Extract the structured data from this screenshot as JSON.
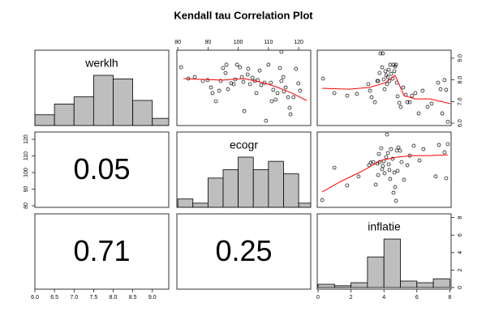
{
  "title": "Kendall tau Correlation Plot",
  "chart_data": [
    {
      "type": "histogram",
      "label": "werklh",
      "color": "#bebebe",
      "bins": [
        6.0,
        6.5,
        7.0,
        7.5,
        8.0,
        8.5,
        9.0,
        9.5
      ],
      "values": [
        3,
        6,
        8,
        14,
        13,
        7,
        2
      ],
      "xlim": [
        6.0,
        9.42
      ],
      "ylim": [
        0,
        21
      ]
    },
    {
      "type": "scatter",
      "xlim": [
        79.7,
        124.0
      ],
      "ylim": [
        5.89,
        9.37
      ],
      "x_axis": "top",
      "xticks": [
        80,
        90,
        100,
        110,
        120
      ],
      "x": [
        81.1,
        83.5,
        85.6,
        88.3,
        89.9,
        91.0,
        91.5,
        92.6,
        93.7,
        94.2,
        95.0,
        96.1,
        95.8,
        96.6,
        97.7,
        98.5,
        99.0,
        99.6,
        100.6,
        101.2,
        101.7,
        102.0,
        103.1,
        103.3,
        103.9,
        104.7,
        105.5,
        106.0,
        106.5,
        107.1,
        107.6,
        108.7,
        109.2,
        110.0,
        110.8,
        111.1,
        111.6,
        112.4,
        113.0,
        113.8,
        114.3,
        114.9,
        115.1,
        115.7,
        116.5,
        117.0,
        117.3,
        118.3,
        119.1,
        119.9,
        114.3,
        120.5
      ],
      "values": [
        8.58,
        8.06,
        8.13,
        7.95,
        7.99,
        7.65,
        7.39,
        7.01,
        7.5,
        7.95,
        8.55,
        8.7,
        8.32,
        7.57,
        7.84,
        7.8,
        8.02,
        8.7,
        8.58,
        8.13,
        7.91,
        6.56,
        8.25,
        8.51,
        7.8,
        8.1,
        7.95,
        7.39,
        7.99,
        8.43,
        7.76,
        7.87,
        6.11,
        8.7,
        7.87,
        7.01,
        7.54,
        7.09,
        7.39,
        8.55,
        7.95,
        8.13,
        7.46,
        7.65,
        7.2,
        6.71,
        6.41,
        7.2,
        8.51,
        7.84,
        9.3,
        7.5
      ],
      "smooth": {
        "color": "#ff0000",
        "x": [
          81.9,
          88.3,
          95.0,
          101.7,
          107.1,
          112.4,
          117.8,
          122.6
        ],
        "values": [
          8.06,
          8.02,
          7.99,
          8.06,
          7.91,
          7.69,
          7.39,
          7.05
        ]
      }
    },
    {
      "type": "scatter",
      "xlim": [
        -0.05,
        8.08
      ],
      "ylim": [
        5.89,
        9.37
      ],
      "y_axis": "right",
      "yticks": [
        {
          "value": 6,
          "label": "6.0"
        },
        {
          "value": 7,
          "label": "7.0"
        },
        {
          "value": 8,
          "label": "8.0"
        },
        {
          "value": 9,
          "label": "9.0"
        }
      ],
      "x": [
        0.3,
        0.99,
        1.77,
        2.36,
        3.05,
        3.15,
        3.25,
        3.45,
        3.6,
        3.65,
        3.74,
        3.79,
        3.89,
        3.94,
        3.99,
        4.04,
        4.09,
        4.14,
        4.19,
        4.24,
        4.29,
        4.33,
        4.38,
        4.43,
        4.53,
        4.58,
        4.63,
        4.68,
        4.73,
        4.78,
        4.83,
        4.93,
        5.02,
        5.17,
        5.32,
        5.42,
        5.57,
        5.71,
        5.91,
        6.11,
        6.35,
        6.65,
        6.9,
        7.29,
        7.44,
        7.54,
        7.78,
        7.88,
        7.68
      ],
      "values": [
        8.06,
        7.39,
        7.27,
        7.35,
        7.8,
        7.5,
        7.2,
        6.97,
        7.95,
        7.95,
        8.32,
        9.22,
        8.58,
        9.22,
        8.02,
        7.57,
        8.4,
        8.21,
        7.8,
        8.13,
        8.47,
        7.95,
        8.7,
        8.28,
        8.06,
        8.7,
        8.4,
        8.62,
        8.7,
        7.87,
        7.24,
        6.94,
        6.75,
        7.65,
        7.31,
        6.97,
        6.97,
        7.27,
        7.39,
        6.45,
        7.5,
        6.75,
        6.9,
        7.87,
        7.57,
        6.45,
        7.54,
        6.07,
        7.99
      ],
      "smooth": {
        "color": "#ff0000",
        "x": [
          0.25,
          1.87,
          3.1,
          4.09,
          4.68,
          5.22,
          5.91,
          6.8,
          8.03
        ],
        "values": [
          7.61,
          7.57,
          7.65,
          7.87,
          8.21,
          7.27,
          7.12,
          7.12,
          6.9
        ]
      }
    },
    {
      "type": "text",
      "value": 0.05,
      "ylim": [
        79.0,
        124.4
      ],
      "y_axis": "left",
      "yticks": [
        80,
        90,
        100,
        110,
        120
      ]
    },
    {
      "type": "histogram",
      "label": "ecogr",
      "color": "#bebebe",
      "bins": [
        80,
        85,
        90,
        95,
        100,
        105,
        110,
        115,
        120,
        125
      ],
      "values": [
        2,
        1,
        7,
        9,
        12,
        9,
        11,
        8,
        1
      ],
      "xlim": [
        79.7,
        124.0
      ],
      "ylim": [
        0,
        18
      ]
    },
    {
      "type": "scatter",
      "xlim": [
        -0.05,
        8.08
      ],
      "ylim": [
        79.0,
        124.4
      ],
      "x": [
        0.25,
        0.99,
        1.77,
        2.46,
        3.1,
        3.2,
        3.35,
        3.5,
        3.6,
        3.65,
        3.69,
        3.74,
        3.84,
        3.89,
        3.94,
        3.99,
        4.04,
        4.14,
        4.19,
        4.24,
        4.29,
        4.33,
        4.38,
        4.43,
        4.53,
        4.58,
        4.63,
        4.68,
        4.73,
        4.78,
        4.83,
        4.88,
        4.98,
        5.07,
        5.22,
        5.42,
        5.57,
        5.81,
        6.16,
        6.4,
        7.14,
        7.34,
        7.68,
        7.78,
        7.88
      ],
      "values": [
        83.4,
        102.9,
        92.2,
        97.6,
        104.4,
        105.9,
        106.3,
        92.7,
        105.4,
        98.5,
        111.2,
        106.3,
        114.6,
        102.0,
        103.9,
        106.8,
        99.5,
        109.3,
        122.9,
        111.7,
        104.9,
        101.5,
        96.1,
        114.1,
        108.3,
        87.8,
        100.0,
        91.2,
        82.9,
        113.2,
        101.0,
        115.1,
        113.2,
        106.3,
        95.6,
        104.4,
        110.2,
        116.1,
        107.3,
        114.1,
        97.6,
        116.6,
        112.2,
        96.6,
        117.1
      ],
      "smooth": {
        "color": "#ff0000",
        "x": [
          0.25,
          1.38,
          2.61,
          3.84,
          4.83,
          5.81,
          6.8,
          7.88
        ],
        "values": [
          88.3,
          94.6,
          100.5,
          107.3,
          109.3,
          110.2,
          110.2,
          110.7
        ]
      }
    },
    {
      "type": "text",
      "value": 0.71,
      "xlim": [
        6.0,
        9.42
      ],
      "x_axis": "bottom",
      "xticks": [
        {
          "value": 6,
          "label": "6.0"
        },
        6.5,
        {
          "value": 7,
          "label": "7.0"
        },
        7.5,
        {
          "value": 8,
          "label": "8.0"
        },
        8.5,
        {
          "value": 9,
          "label": "9.0"
        }
      ]
    },
    {
      "type": "text",
      "value": 0.25
    },
    {
      "type": "histogram",
      "label": "inflatie",
      "color": "#bebebe",
      "bins": [
        0,
        1,
        2,
        3,
        4,
        5,
        6,
        7,
        8
      ],
      "values": [
        0.37,
        0.2,
        0.55,
        3.5,
        5.55,
        0.74,
        0.55,
        1.0
      ],
      "xlim": [
        -0.05,
        8.08
      ],
      "ylim": [
        -0.19,
        8.43
      ],
      "x_axis": "bottom",
      "y_axis": "right",
      "xticks": [
        0,
        2,
        4,
        6,
        8
      ],
      "yticks": [
        0,
        2,
        4,
        6,
        8
      ]
    }
  ]
}
